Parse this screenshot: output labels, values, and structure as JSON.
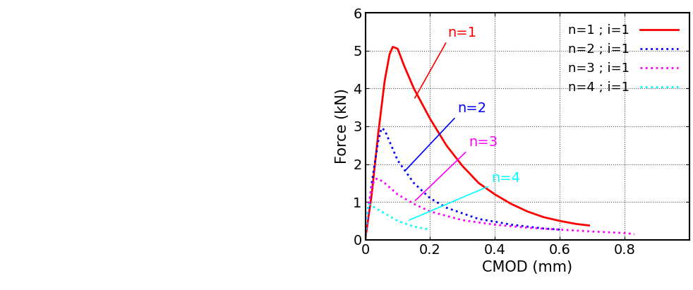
{
  "chart_data": {
    "type": "line",
    "x_label": "CMOD (mm)",
    "y_label": "Force (kN)",
    "xlim": [
      0,
      1
    ],
    "ylim": [
      0,
      6
    ],
    "xticks": [
      0,
      0.2,
      0.4,
      0.6,
      0.8
    ],
    "yticks": [
      0,
      1,
      2,
      3,
      4,
      5,
      6
    ],
    "grid": true,
    "legend": "upper right",
    "series": [
      {
        "name": "n=1 ; i=1",
        "color": "#ff0000",
        "line_style": "solid",
        "x": [
          0,
          0.02,
          0.04,
          0.06,
          0.075,
          0.085,
          0.1,
          0.12,
          0.15,
          0.2,
          0.25,
          0.3,
          0.35,
          0.4,
          0.45,
          0.5,
          0.55,
          0.6,
          0.65,
          0.69
        ],
        "values": [
          0,
          1.2,
          2.8,
          4.2,
          4.9,
          5.1,
          5.05,
          4.6,
          4.0,
          3.2,
          2.5,
          1.95,
          1.5,
          1.2,
          0.95,
          0.75,
          0.6,
          0.5,
          0.42,
          0.38
        ]
      },
      {
        "name": "n=2 ; i=1",
        "color": "#0000ff",
        "line_style": "dotted",
        "x": [
          0,
          0.02,
          0.04,
          0.05,
          0.06,
          0.08,
          0.1,
          0.15,
          0.2,
          0.25,
          0.3,
          0.35,
          0.4,
          0.45,
          0.5,
          0.55,
          0.6
        ],
        "values": [
          0,
          1.5,
          2.6,
          2.95,
          2.9,
          2.5,
          2.1,
          1.5,
          1.1,
          0.85,
          0.7,
          0.55,
          0.48,
          0.4,
          0.35,
          0.3,
          0.27
        ]
      },
      {
        "name": "n=3 ; i=1",
        "color": "#ff00ff",
        "line_style": "dotted",
        "x": [
          0,
          0.01,
          0.02,
          0.03,
          0.04,
          0.06,
          0.1,
          0.15,
          0.2,
          0.3,
          0.4,
          0.5,
          0.6,
          0.7,
          0.8,
          0.83
        ],
        "values": [
          0,
          0.9,
          1.4,
          1.6,
          1.62,
          1.5,
          1.2,
          0.95,
          0.75,
          0.52,
          0.4,
          0.32,
          0.27,
          0.22,
          0.18,
          0.15
        ]
      },
      {
        "name": "n=4 ; i=1",
        "color": "#00ffff",
        "line_style": "dotted",
        "x": [
          0,
          0.005,
          0.01,
          0.02,
          0.05,
          0.1,
          0.15,
          0.2
        ],
        "values": [
          0,
          0.6,
          0.95,
          0.9,
          0.75,
          0.5,
          0.35,
          0.27
        ]
      }
    ],
    "annotations": [
      {
        "text": "n=1",
        "color": "#ff0000"
      },
      {
        "text": "n=2",
        "color": "#0000ff"
      },
      {
        "text": "n=3",
        "color": "#ff00ff"
      },
      {
        "text": "n=4",
        "color": "#00ffff"
      }
    ]
  }
}
